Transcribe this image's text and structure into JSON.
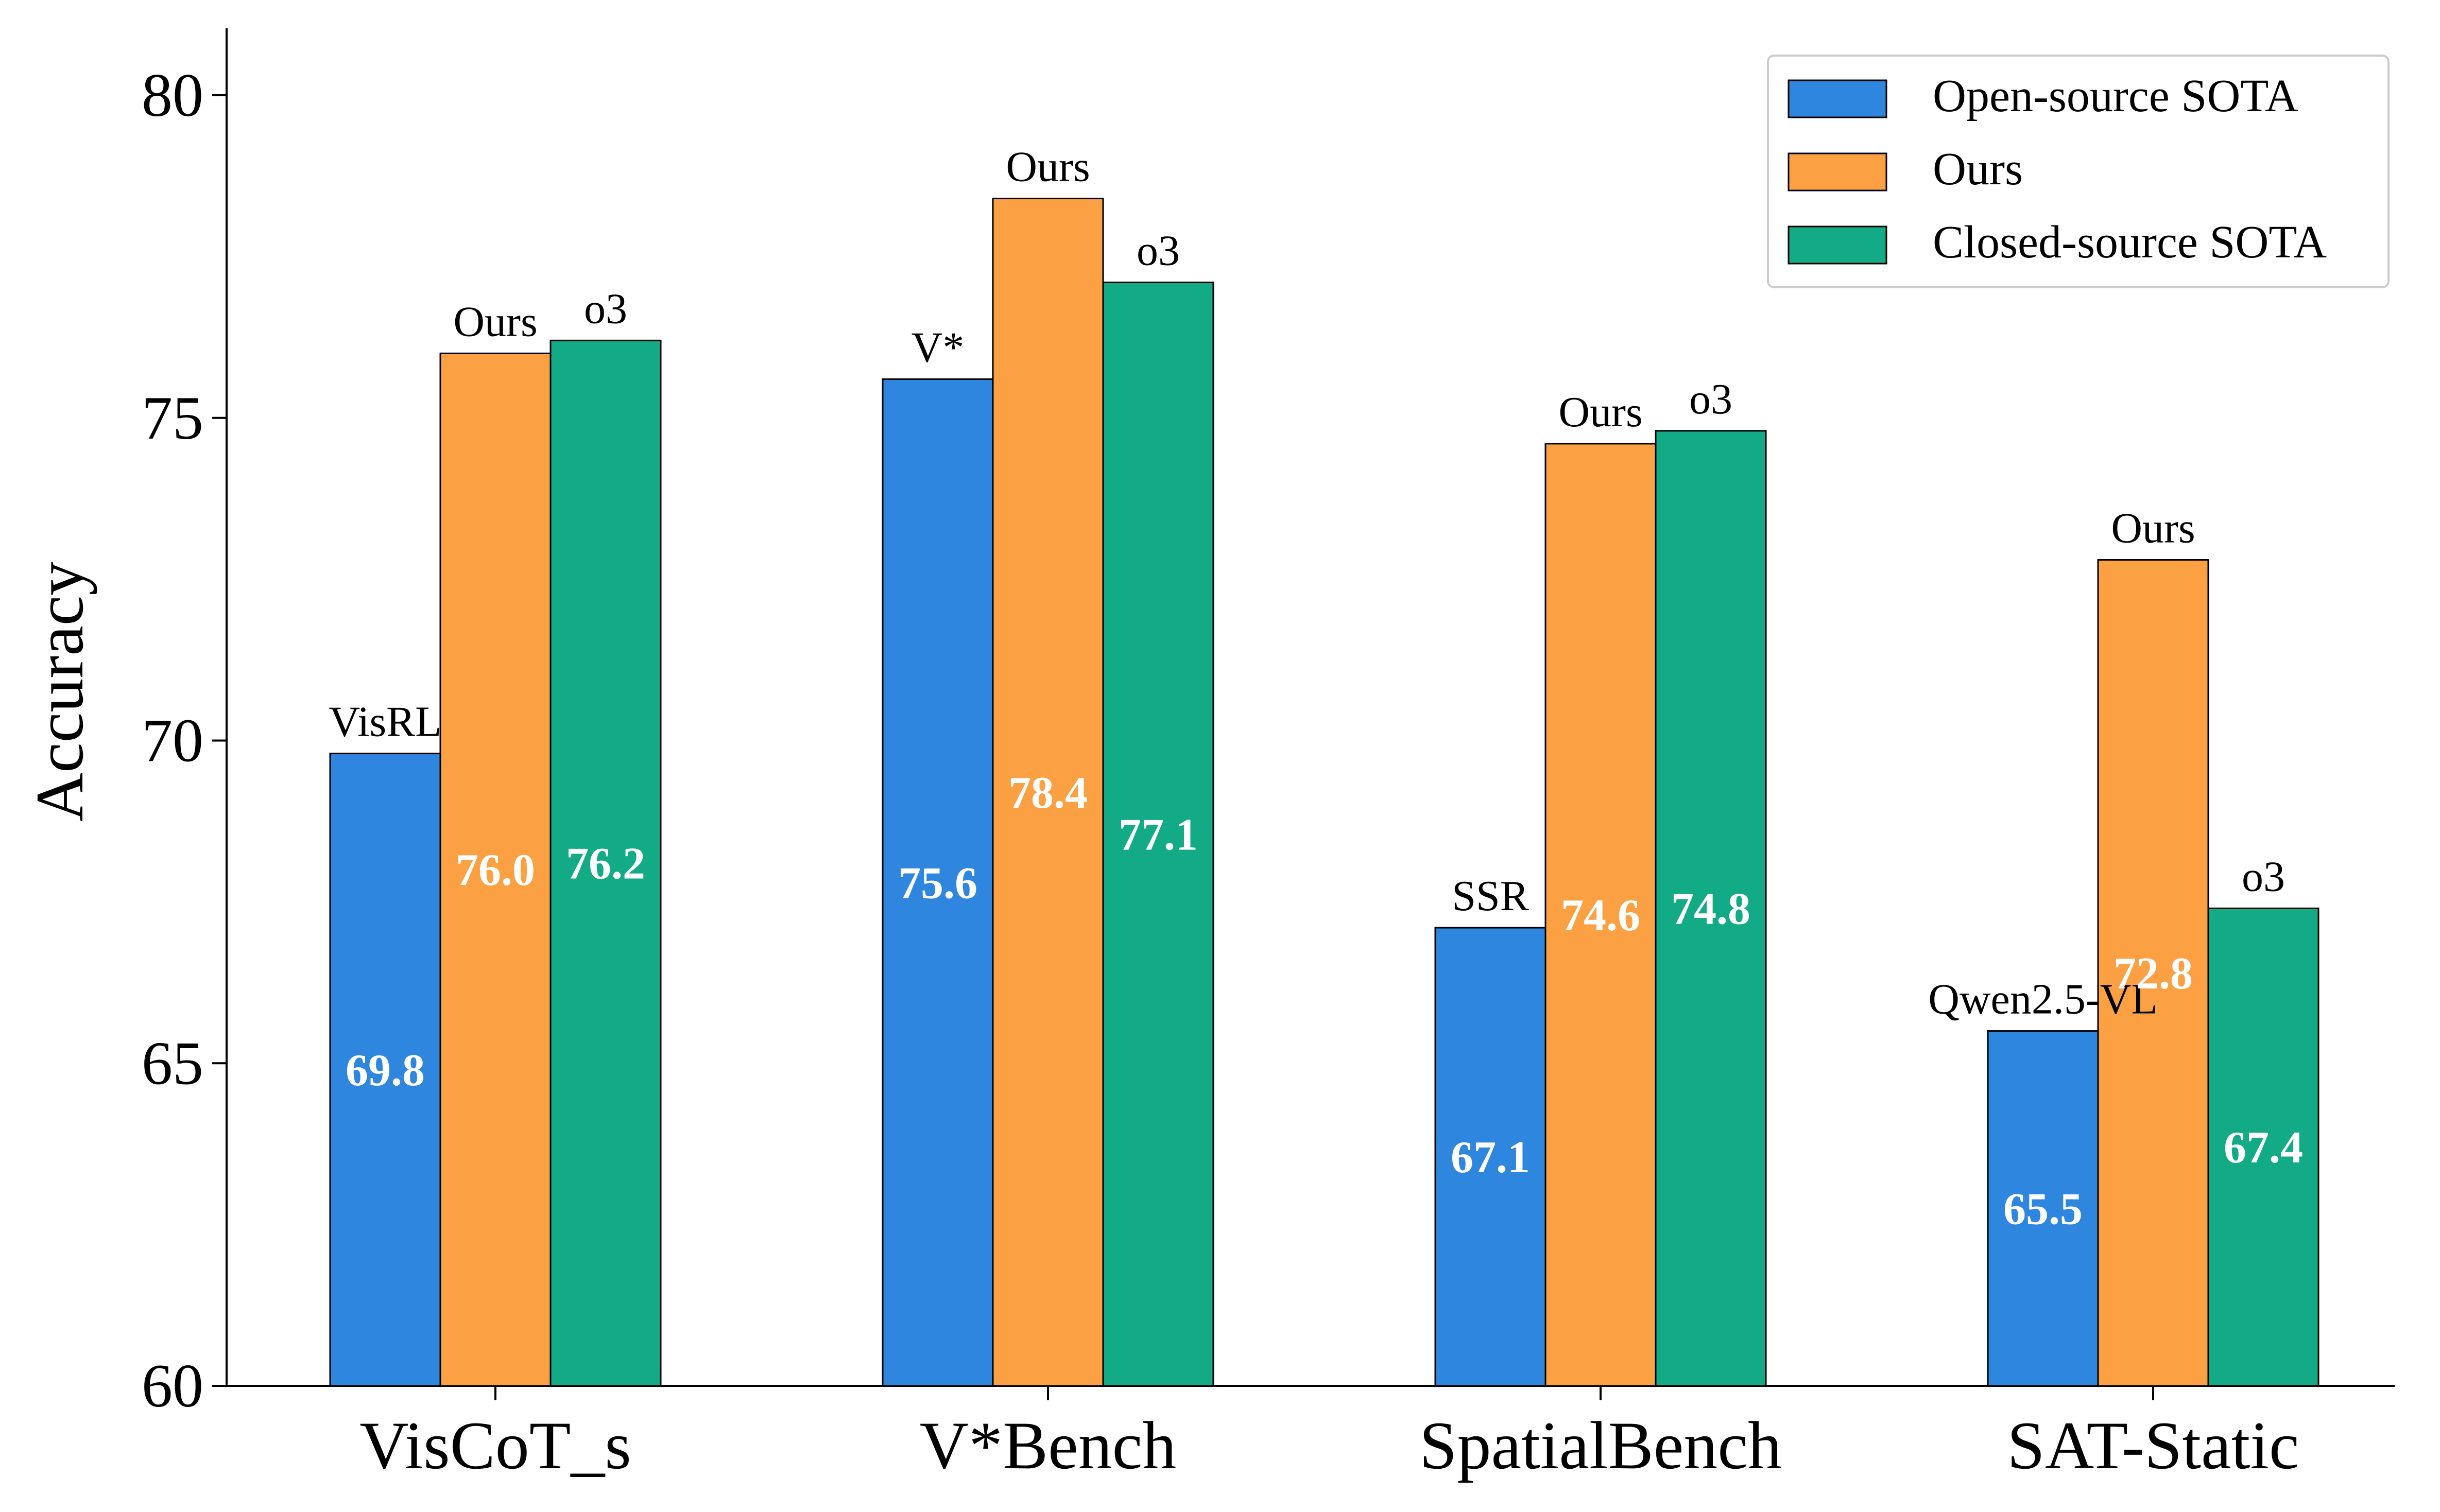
{
  "chart_data": {
    "type": "bar",
    "title": "",
    "xlabel": "",
    "ylabel": "Accuracy",
    "ylim": [
      60,
      81
    ],
    "yticks": [
      60,
      65,
      70,
      75,
      80
    ],
    "categories": [
      "VisCoT_s",
      "V*Bench",
      "SpatialBench",
      "SAT-Static"
    ],
    "series": [
      {
        "name": "Open-source SOTA",
        "color": "#2e86de",
        "values": [
          69.8,
          75.6,
          67.1,
          65.5
        ],
        "value_labels": [
          "69.8",
          "75.6",
          "67.1",
          "65.5"
        ],
        "top_labels": [
          "VisRL",
          "V*",
          "SSR",
          "Qwen2.5-VL"
        ]
      },
      {
        "name": "Ours",
        "color": "#fca044",
        "values": [
          76.0,
          78.4,
          74.6,
          72.8
        ],
        "value_labels": [
          "76.0",
          "78.4",
          "74.6",
          "72.8"
        ],
        "top_labels": [
          "Ours",
          "Ours",
          "Ours",
          "Ours"
        ]
      },
      {
        "name": "Closed-source SOTA",
        "color": "#12ab85",
        "values": [
          76.2,
          77.1,
          74.8,
          67.4
        ],
        "value_labels": [
          "76.2",
          "77.1",
          "74.8",
          "67.4"
        ],
        "top_labels": [
          "o3",
          "o3",
          "o3",
          "o3"
        ]
      }
    ],
    "legend": {
      "position": "top-right"
    },
    "grid": false
  }
}
